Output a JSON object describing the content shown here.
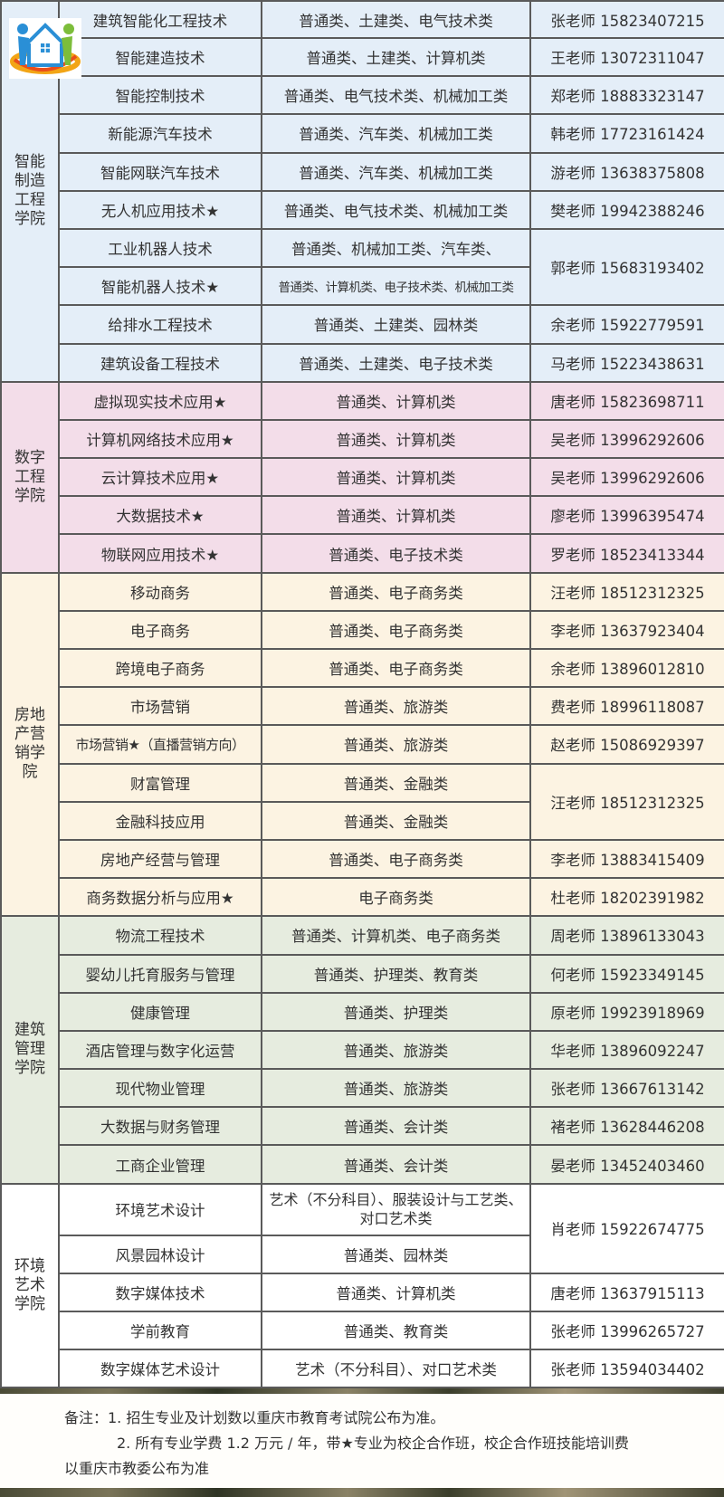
{
  "colors": {
    "smart": "#e4eef8",
    "digital": "#f3dde9",
    "realestate": "#fcf3e2",
    "construction": "#e6ecdf",
    "art": "#ffffff",
    "border": "#5a5a5a"
  },
  "logo": {
    "icon": "house-family-logo"
  },
  "colleges": [
    {
      "name": "智能制造工程学院",
      "lines": [
        "智能",
        "制造",
        "工程",
        "学院"
      ],
      "color_key": "smart",
      "rows": [
        {
          "major": "建筑智能化工程技术",
          "category": "普通类、土建类、电气技术类",
          "contact": "张老师 15823407215"
        },
        {
          "major": "智能建造技术",
          "category": "普通类、土建类、计算机类",
          "contact": "王老师 13072311047"
        },
        {
          "major": "智能控制技术",
          "category": "普通类、电气技术类、机械加工类",
          "contact": "郑老师 18883323147"
        },
        {
          "major": "新能源汽车技术",
          "category": "普通类、汽车类、机械加工类",
          "contact": "韩老师 17723161424"
        },
        {
          "major": "智能网联汽车技术",
          "category": "普通类、汽车类、机械加工类",
          "contact": "游老师 13638375808"
        },
        {
          "major": "无人机应用技术★",
          "category": "普通类、电气技术类、机械加工类",
          "contact": "樊老师 19942388246"
        },
        {
          "major": "工业机器人技术",
          "category": "普通类、机械加工类、汽车类、",
          "contact": "郭老师 15683193402",
          "contact_span": 2
        },
        {
          "major": "智能机器人技术★",
          "category": "普通类、计算机类、电子技术类、机械加工类",
          "small": true
        },
        {
          "major": "给排水工程技术",
          "category": "普通类、土建类、园林类",
          "contact": "余老师 15922779591"
        },
        {
          "major": "建筑设备工程技术",
          "category": "普通类、土建类、电子技术类",
          "contact": "马老师 15223438631"
        }
      ]
    },
    {
      "name": "数字工程学院",
      "lines": [
        "数字",
        "工程",
        "学院"
      ],
      "color_key": "digital",
      "rows": [
        {
          "major": "虚拟现实技术应用★",
          "category": "普通类、计算机类",
          "contact": "唐老师 15823698711"
        },
        {
          "major": "计算机网络技术应用★",
          "category": "普通类、计算机类",
          "contact": "吴老师 13996292606"
        },
        {
          "major": "云计算技术应用★",
          "category": "普通类、计算机类",
          "contact": "吴老师 13996292606"
        },
        {
          "major": "大数据技术★",
          "category": "普通类、计算机类",
          "contact": "廖老师 13996395474"
        },
        {
          "major": "物联网应用技术★",
          "category": "普通类、电子技术类",
          "contact": "罗老师 18523413344"
        }
      ]
    },
    {
      "name": "房地产营销学院",
      "lines": [
        "房地",
        "产营",
        "销学",
        "院"
      ],
      "color_key": "realestate",
      "rows": [
        {
          "major": "移动商务",
          "category": "普通类、电子商务类",
          "contact": "汪老师 18512312325"
        },
        {
          "major": "电子商务",
          "category": "普通类、电子商务类",
          "contact": "李老师 13637923404"
        },
        {
          "major": "跨境电子商务",
          "category": "普通类、电子商务类",
          "contact": "余老师 13896012810"
        },
        {
          "major": "市场营销",
          "category": "普通类、旅游类",
          "contact": "费老师 18996118087"
        },
        {
          "major": "市场营销★（直播营销方向）",
          "category": "普通类、旅游类",
          "contact": "赵老师 15086929397",
          "tight": true
        },
        {
          "major": "财富管理",
          "category": "普通类、金融类",
          "contact": "汪老师 18512312325",
          "contact_span": 2
        },
        {
          "major": "金融科技应用",
          "category": "普通类、金融类"
        },
        {
          "major": "房地产经营与管理",
          "category": "普通类、电子商务类",
          "contact": "李老师 13883415409"
        },
        {
          "major": "商务数据分析与应用★",
          "category": "电子商务类",
          "contact": "杜老师 18202391982"
        }
      ]
    },
    {
      "name": "建筑管理学院",
      "lines": [
        "建筑",
        "管理",
        "学院"
      ],
      "color_key": "construction",
      "rows": [
        {
          "major": "物流工程技术",
          "category": "普通类、计算机类、电子商务类",
          "contact": "周老师 13896133043"
        },
        {
          "major": "婴幼儿托育服务与管理",
          "category": "普通类、护理类、教育类",
          "contact": "何老师 15923349145"
        },
        {
          "major": "健康管理",
          "category": "普通类、护理类",
          "contact": "原老师 19923918969"
        },
        {
          "major": "酒店管理与数字化运营",
          "category": "普通类、旅游类",
          "contact": "华老师 13896092247"
        },
        {
          "major": "现代物业管理",
          "category": "普通类、旅游类",
          "contact": "张老师 13667613142"
        },
        {
          "major": "大数据与财务管理",
          "category": "普通类、会计类",
          "contact": "褚老师 13628446208"
        },
        {
          "major": "工商企业管理",
          "category": "普通类、会计类",
          "contact": "晏老师 13452403460"
        }
      ]
    },
    {
      "name": "环境艺术学院",
      "lines": [
        "环境",
        "艺术",
        "学院"
      ],
      "color_key": "art",
      "rows": [
        {
          "major": "环境艺术设计",
          "category": "艺术（不分科目）、服装设计与工艺类、对口艺术类",
          "contact": "肖老师 15922674775",
          "contact_span": 2,
          "tall": true,
          "wrap": true
        },
        {
          "major": "风景园林设计",
          "category": "普通类、园林类"
        },
        {
          "major": "数字媒体技术",
          "category": "普通类、计算机类",
          "contact": "唐老师 13637915113"
        },
        {
          "major": "学前教育",
          "category": "普通类、教育类",
          "contact": "张老师 13996265727"
        },
        {
          "major": "数字媒体艺术设计",
          "category": "艺术（不分科目）、对口艺术类",
          "contact": "张老师 13594034402"
        }
      ]
    }
  ],
  "notes": {
    "line1": "备注：1. 招生专业及计划数以重庆市教育考试院公布为准。",
    "line2": "2. 所有专业学费 1.2 万元 / 年，带★专业为校企合作班，校企合作班技能培训费",
    "line3": "以重庆市教委公布为准"
  }
}
